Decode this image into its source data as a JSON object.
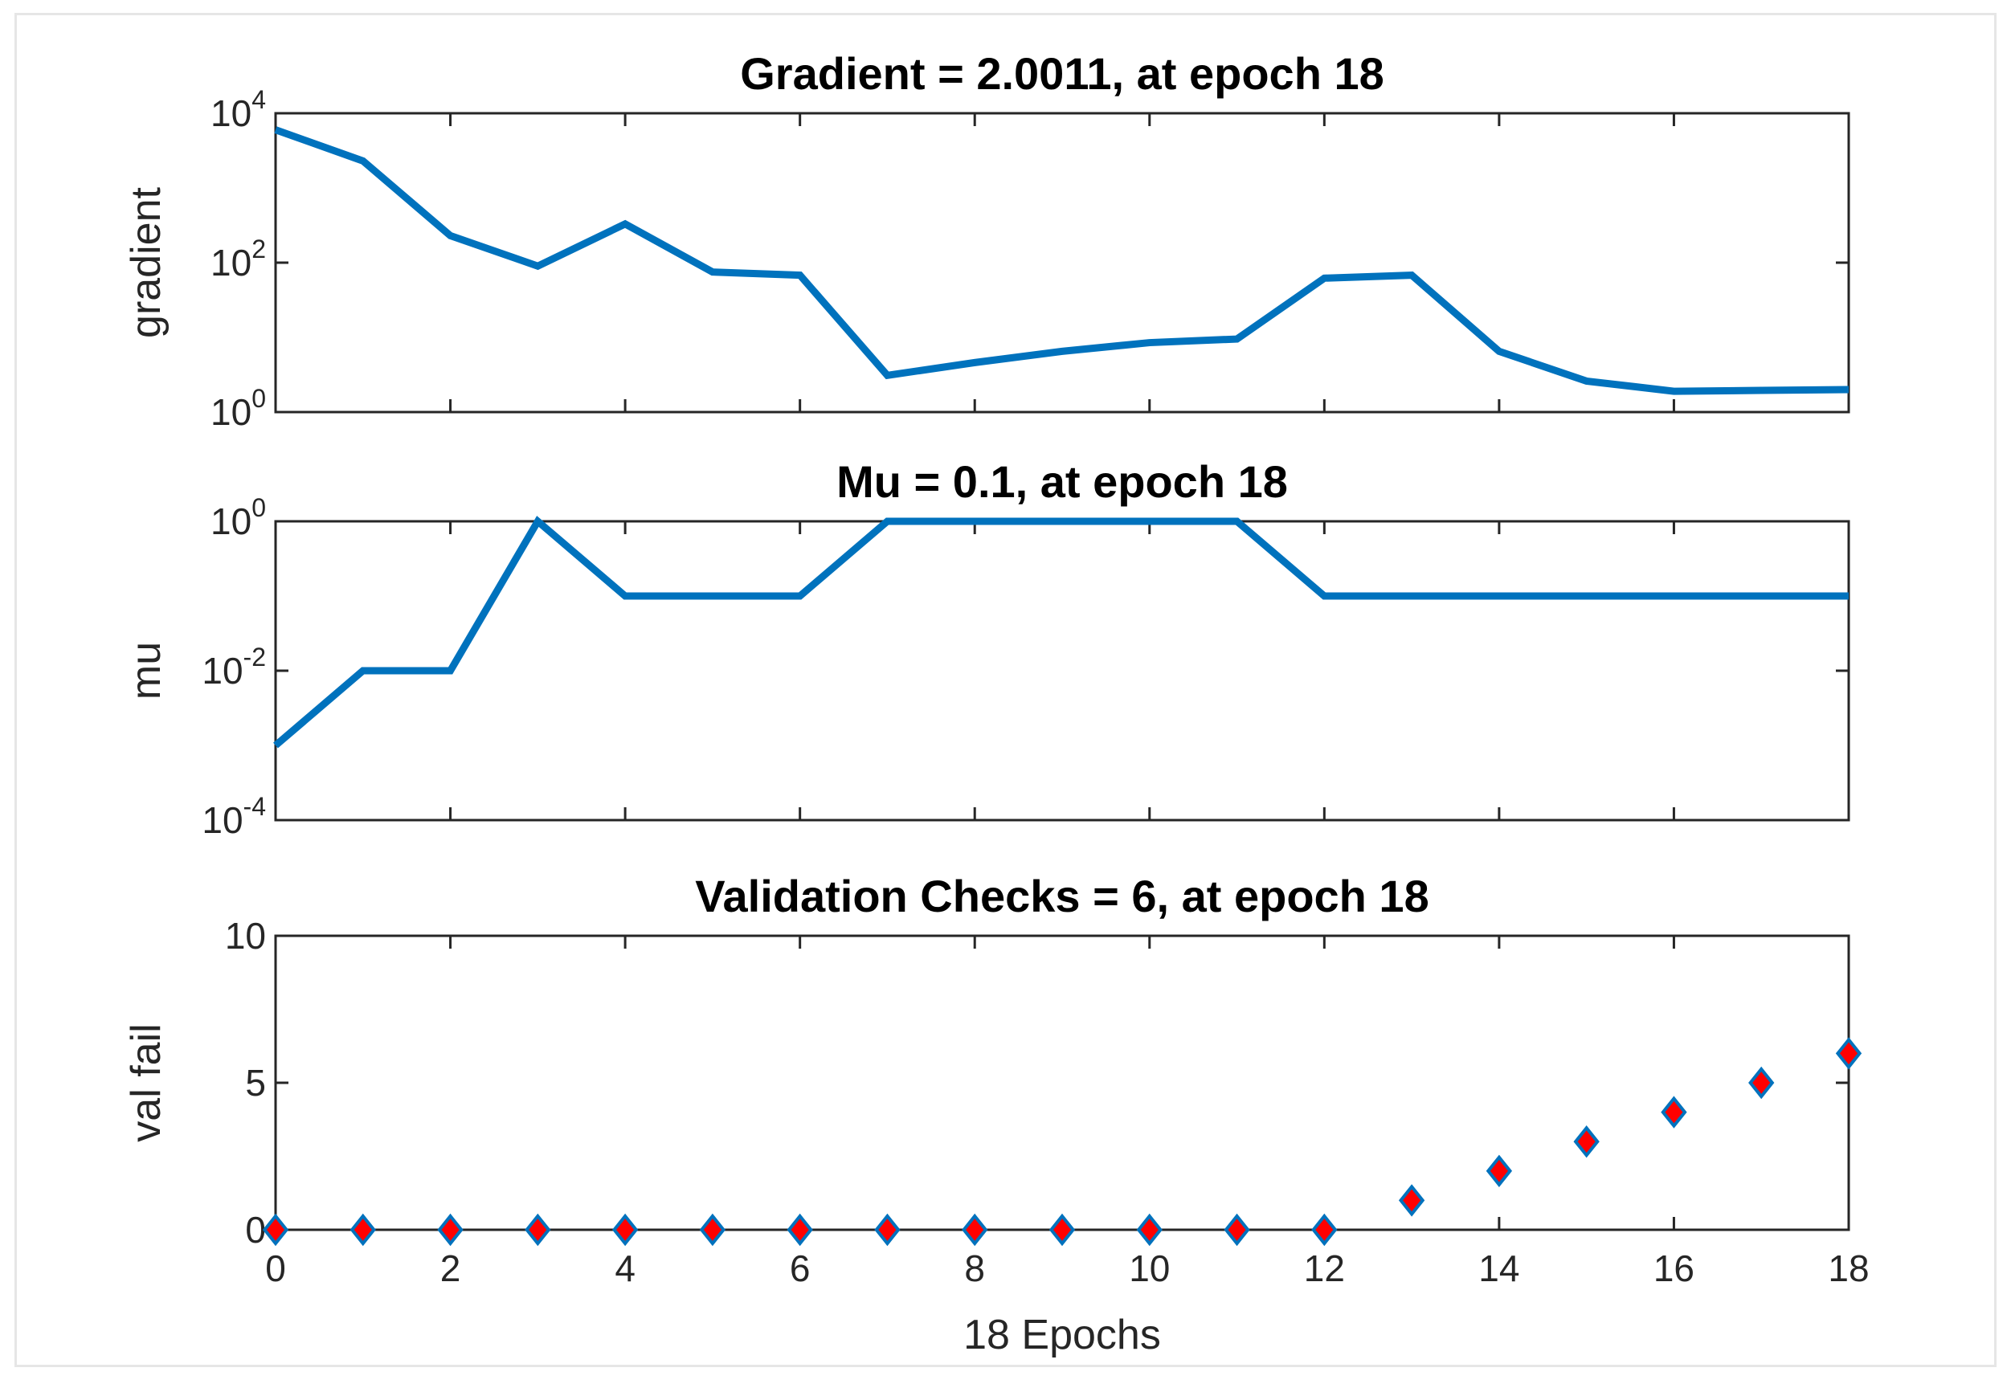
{
  "colors": {
    "line": "#0072bd",
    "marker_fill": "#ff0000",
    "marker_edge": "#0072bd",
    "axes": "#262626",
    "background": "#ffffff"
  },
  "chart_data": [
    {
      "type": "line",
      "title": "Gradient = 2.0011, at epoch 18",
      "ylabel": "gradient",
      "xlabel": "",
      "yscale": "log",
      "xlim": [
        0,
        18
      ],
      "ylim": [
        1,
        10000
      ],
      "yticks": [
        {
          "base": "10",
          "exp": "0",
          "value": 1
        },
        {
          "base": "10",
          "exp": "2",
          "value": 100
        },
        {
          "base": "10",
          "exp": "4",
          "value": 10000
        }
      ],
      "x": [
        0,
        1,
        2,
        3,
        4,
        5,
        6,
        7,
        8,
        9,
        10,
        11,
        12,
        13,
        14,
        15,
        16,
        17,
        18
      ],
      "series": [
        {
          "values": [
            6000,
            2300,
            230,
            90,
            330,
            75,
            68,
            3.1,
            4.6,
            6.5,
            8.5,
            9.5,
            62,
            68,
            6.5,
            2.6,
            1.9,
            1.95,
            2.0011
          ]
        }
      ],
      "grid": false
    },
    {
      "type": "line",
      "title": "Mu = 0.1, at epoch 18",
      "ylabel": "mu",
      "xlabel": "",
      "yscale": "log",
      "xlim": [
        0,
        18
      ],
      "ylim": [
        0.0001,
        1
      ],
      "yticks": [
        {
          "base": "10",
          "exp": "0",
          "value": 1
        },
        {
          "base": "10",
          "exp": "-2",
          "value": 0.01
        },
        {
          "base": "10",
          "exp": "-4",
          "value": 0.0001
        }
      ],
      "x": [
        0,
        1,
        2,
        3,
        4,
        5,
        6,
        7,
        8,
        9,
        10,
        11,
        12,
        13,
        14,
        15,
        16,
        17,
        18
      ],
      "series": [
        {
          "values": [
            0.001,
            0.01,
            0.01,
            1,
            0.1,
            0.1,
            0.1,
            1,
            1,
            1,
            1,
            1,
            0.1,
            0.1,
            0.1,
            0.1,
            0.1,
            0.1,
            0.1
          ]
        }
      ],
      "grid": false
    },
    {
      "type": "scatter",
      "title": "Validation Checks = 6, at epoch 18",
      "ylabel": "val fail",
      "xlabel": "18 Epochs",
      "yscale": "linear",
      "xlim": [
        0,
        18
      ],
      "ylim": [
        0,
        10
      ],
      "yticks": [
        {
          "label": "0",
          "value": 0
        },
        {
          "label": "5",
          "value": 5
        },
        {
          "label": "10",
          "value": 10
        }
      ],
      "xticks": [
        "0",
        "2",
        "4",
        "6",
        "8",
        "10",
        "12",
        "14",
        "16",
        "18"
      ],
      "x": [
        0,
        1,
        2,
        3,
        4,
        5,
        6,
        7,
        8,
        9,
        10,
        11,
        12,
        13,
        14,
        15,
        16,
        17,
        18
      ],
      "series": [
        {
          "values": [
            0,
            0,
            0,
            0,
            0,
            0,
            0,
            0,
            0,
            0,
            0,
            0,
            0,
            1,
            2,
            3,
            4,
            5,
            6
          ]
        }
      ],
      "marker": "diamond",
      "grid": false
    }
  ]
}
